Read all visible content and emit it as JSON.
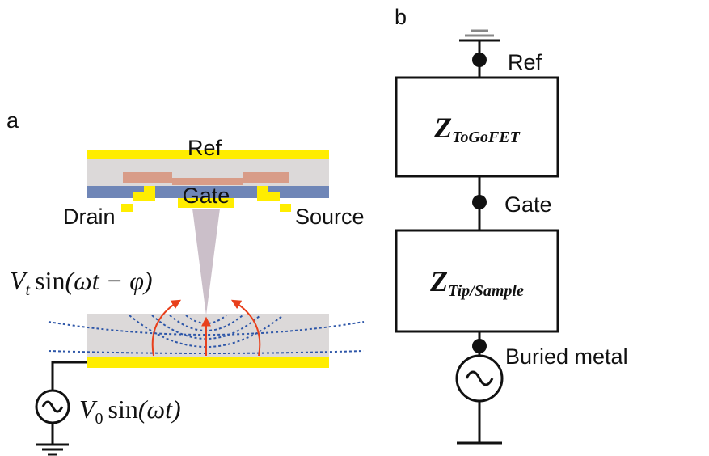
{
  "panel_a": {
    "label": "a",
    "ref": "Ref",
    "gate": "Gate",
    "drain": "Drain",
    "source": "Source",
    "tip_voltage": {
      "symbol": "V",
      "subscript": "t",
      "function": "sin",
      "argument": "(ωt − φ)"
    },
    "source_voltage": {
      "symbol": "V",
      "subscript": "0",
      "function": "sin",
      "argument": "(ωt)"
    }
  },
  "panel_b": {
    "label": "b",
    "ref": "Ref",
    "gate": "Gate",
    "buried_metal": "Buried metal",
    "upper_impedance": {
      "symbol": "Z",
      "subscript": "ToGoFET"
    },
    "lower_impedance": {
      "symbol": "Z",
      "subscript": "Tip/Sample"
    }
  }
}
